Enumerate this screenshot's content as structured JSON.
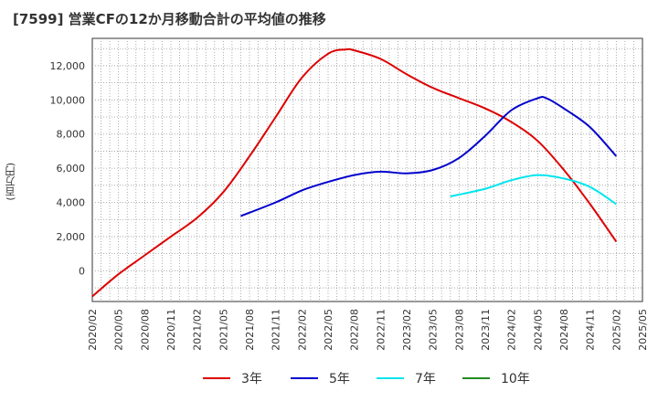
{
  "chart_data": {
    "type": "line",
    "title": "[7599]  営業CFの12か月移動合計の平均値の推移",
    "xlabel": "",
    "ylabel": "(百万円)",
    "ylim": [
      -1800,
      13600
    ],
    "grid": true,
    "legend_position": "bottom",
    "y_ticks": [
      0,
      2000,
      4000,
      6000,
      8000,
      10000,
      12000
    ],
    "y_tick_labels": [
      "0",
      "2,000",
      "4,000",
      "6,000",
      "8,000",
      "10,000",
      "12,000"
    ],
    "x_ticks": [
      "2020/02",
      "2020/05",
      "2020/08",
      "2020/11",
      "2021/02",
      "2021/05",
      "2021/08",
      "2021/11",
      "2022/02",
      "2022/05",
      "2022/08",
      "2022/11",
      "2023/02",
      "2023/05",
      "2023/08",
      "2023/11",
      "2024/02",
      "2024/05",
      "2024/08",
      "2024/11",
      "2025/02",
      "2025/05"
    ],
    "series": [
      {
        "name": "3年",
        "color": "#dd0000",
        "x": [
          "2020/02",
          "2020/05",
          "2020/08",
          "2020/11",
          "2021/02",
          "2021/05",
          "2021/08",
          "2021/11",
          "2022/02",
          "2022/05",
          "2022/07",
          "2022/08",
          "2022/11",
          "2023/02",
          "2023/05",
          "2023/08",
          "2023/11",
          "2024/02",
          "2024/05",
          "2024/08",
          "2024/11",
          "2025/02"
        ],
        "values": [
          -1500,
          -200,
          900,
          2000,
          3100,
          4600,
          6700,
          9000,
          11300,
          12700,
          12950,
          12900,
          12400,
          11500,
          10700,
          10100,
          9500,
          8700,
          7600,
          5900,
          3900,
          1700
        ]
      },
      {
        "name": "5年",
        "color": "#0000cc",
        "x": [
          "2021/07",
          "2021/11",
          "2022/02",
          "2022/05",
          "2022/08",
          "2022/11",
          "2023/02",
          "2023/05",
          "2023/08",
          "2023/11",
          "2024/02",
          "2024/05",
          "2024/06",
          "2024/08",
          "2024/11",
          "2025/02"
        ],
        "values": [
          3200,
          4000,
          4700,
          5200,
          5600,
          5800,
          5700,
          5900,
          6600,
          7900,
          9400,
          10100,
          10100,
          9500,
          8400,
          6700
        ]
      },
      {
        "name": "7年",
        "color": "#00e5ee",
        "x": [
          "2023/07",
          "2023/11",
          "2024/02",
          "2024/05",
          "2024/08",
          "2024/11",
          "2025/02"
        ],
        "values": [
          4350,
          4800,
          5300,
          5600,
          5400,
          4900,
          3900
        ]
      },
      {
        "name": "10年",
        "color": "#228b22",
        "x": [],
        "values": []
      }
    ]
  }
}
